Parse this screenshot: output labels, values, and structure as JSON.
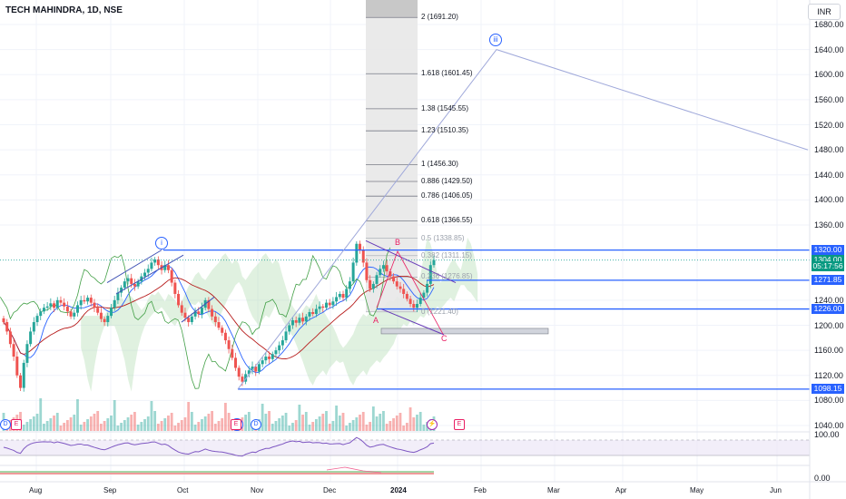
{
  "header": {
    "symbol_title": "TECH MAHINDRA, 1D, NSE",
    "currency": "INR"
  },
  "price_axis": {
    "labels": [
      "1680.00",
      "1640.00",
      "1600.00",
      "1560.00",
      "1520.00",
      "1480.00",
      "1440.00",
      "1400.00",
      "1360.00",
      "1240.00",
      "1200.00",
      "1160.00",
      "1120.00",
      "1080.00",
      "1040.00"
    ],
    "values": [
      1680,
      1640,
      1600,
      1560,
      1520,
      1480,
      1440,
      1400,
      1360,
      1240,
      1200,
      1160,
      1120,
      1080,
      1040
    ]
  },
  "price_tags": [
    {
      "text": "1320.00",
      "value": 1320,
      "color": "#2962ff"
    },
    {
      "text": "1304.00",
      "value": 1304,
      "color": "#089981"
    },
    {
      "text": "05:17:56",
      "value": 1294,
      "color": "#089981"
    },
    {
      "text": "1271.85",
      "value": 1271.85,
      "color": "#2962ff"
    },
    {
      "text": "1226.00",
      "value": 1226,
      "color": "#2962ff"
    },
    {
      "text": "1098.15",
      "value": 1098.15,
      "color": "#2962ff"
    }
  ],
  "time_axis": [
    "Aug",
    "Sep",
    "Oct",
    "Nov",
    "Dec",
    "2024",
    "Feb",
    "Mar",
    "Apr",
    "May",
    "Jun"
  ],
  "fib_levels": [
    {
      "label": "2 (1691.20)",
      "value": 1691.2,
      "faint": false
    },
    {
      "label": "1.618 (1601.45)",
      "value": 1601.45,
      "faint": false
    },
    {
      "label": "1.38 (1545.55)",
      "value": 1545.55,
      "faint": false
    },
    {
      "label": "1.23 (1510.35)",
      "value": 1510.35,
      "faint": false
    },
    {
      "label": "1 (1456.30)",
      "value": 1456.3,
      "faint": false
    },
    {
      "label": "0.886 (1429.50)",
      "value": 1429.5,
      "faint": false
    },
    {
      "label": "0.786 (1406.05)",
      "value": 1406.05,
      "faint": false
    },
    {
      "label": "0.618 (1366.55)",
      "value": 1366.55,
      "faint": false
    },
    {
      "label": "0.5 (1338.85)",
      "value": 1338.85,
      "faint": true
    },
    {
      "label": "0.382 (1311.15)",
      "value": 1311.15,
      "faint": true
    },
    {
      "label": "0.236 (1276.85)",
      "value": 1276.85,
      "faint": true
    },
    {
      "label": "0 (1221.40)",
      "value": 1221.4,
      "faint": true
    }
  ],
  "wave_labels": [
    "i",
    "ii",
    "iii"
  ],
  "abc_labels": [
    "A",
    "B",
    "C"
  ],
  "rsi_axis": {
    "upper": "100.00"
  },
  "macd_axis": {
    "zero": "0.00"
  },
  "colors": {
    "up": "#26a69a",
    "down": "#ef5350",
    "blue": "#2962ff",
    "pink": "#e91e63",
    "purple": "#7e57c2",
    "green_line": "#43a047",
    "brick": "#b71c1c"
  },
  "chart_data": {
    "type": "candlestick",
    "title": "TECH MAHINDRA, 1D, NSE",
    "x": [
      "Aug",
      "Sep",
      "Oct",
      "Nov",
      "Dec",
      "2024",
      "Feb",
      "Mar",
      "Apr",
      "May",
      "Jun"
    ],
    "ylim": [
      1020,
      1720
    ],
    "last_price": 1304,
    "horizontal_levels": [
      1320,
      1271.85,
      1226,
      1098.15
    ],
    "closes": [
      1205,
      1190,
      1170,
      1150,
      1120,
      1100,
      1140,
      1170,
      1190,
      1205,
      1215,
      1222,
      1228,
      1230,
      1235,
      1228,
      1240,
      1236,
      1230,
      1222,
      1214,
      1220,
      1232,
      1240,
      1238,
      1244,
      1236,
      1228,
      1220,
      1210,
      1205,
      1215,
      1228,
      1240,
      1252,
      1260,
      1270,
      1275,
      1266,
      1262,
      1270,
      1278,
      1284,
      1290,
      1300,
      1305,
      1296,
      1288,
      1296,
      1288,
      1268,
      1250,
      1232,
      1220,
      1212,
      1205,
      1214,
      1222,
      1218,
      1228,
      1240,
      1226,
      1214,
      1205,
      1196,
      1188,
      1176,
      1162,
      1148,
      1132,
      1118,
      1110,
      1122,
      1128,
      1134,
      1126,
      1138,
      1144,
      1150,
      1146,
      1154,
      1160,
      1168,
      1176,
      1190,
      1200,
      1208,
      1204,
      1212,
      1206,
      1214,
      1221,
      1218,
      1226,
      1230,
      1228,
      1236,
      1232,
      1238,
      1245,
      1250,
      1244,
      1258,
      1270,
      1300,
      1330,
      1320,
      1300,
      1272,
      1258,
      1266,
      1280,
      1290,
      1296,
      1286,
      1278,
      1270,
      1262,
      1258,
      1250,
      1242,
      1234,
      1228,
      1234,
      1244,
      1252,
      1266,
      1296,
      1304
    ]
  }
}
